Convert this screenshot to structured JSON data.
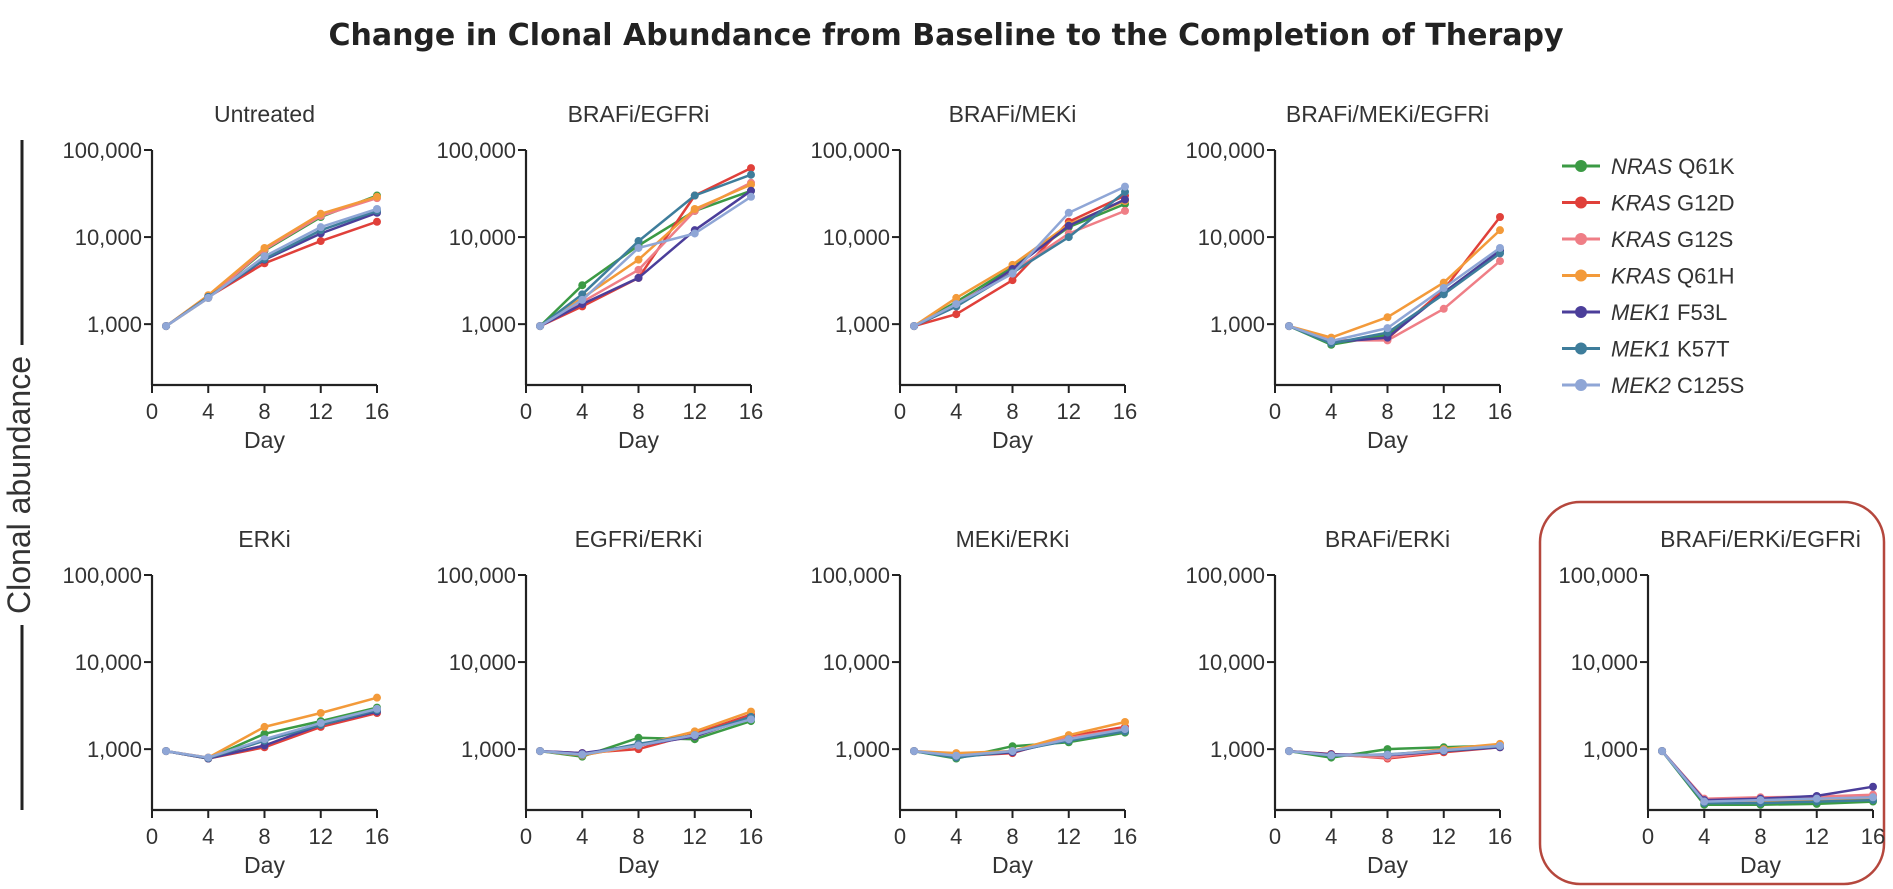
{
  "title": "Change in Clonal Abundance from Baseline to the Completion of Therapy",
  "ylabel": "Clonal abundance",
  "colors": {
    "NRAS Q61K": "#3b9a44",
    "KRAS G12D": "#e0403a",
    "KRAS G12S": "#ef7e86",
    "KRAS Q61H": "#f39a3a",
    "MEK1 F53L": "#4b3e9a",
    "MEK1 K57T": "#3e7d9b",
    "MEK2 C125S": "#8fa6d6"
  },
  "highlight_color": "#b5473d",
  "legend": [
    {
      "gene": "NRAS",
      "mut": " Q61K",
      "key": "NRAS Q61K"
    },
    {
      "gene": "KRAS",
      "mut": " G12D",
      "key": "KRAS G12D"
    },
    {
      "gene": "KRAS",
      "mut": " G12S",
      "key": "KRAS G12S"
    },
    {
      "gene": "KRAS",
      "mut": " Q61H",
      "key": "KRAS Q61H"
    },
    {
      "gene": "MEK1",
      "mut": " F53L",
      "key": "MEK1 F53L"
    },
    {
      "gene": "MEK1",
      "mut": " K57T",
      "key": "MEK1 K57T"
    },
    {
      "gene": "MEK2",
      "mut": " C125S",
      "key": "MEK2 C125S"
    }
  ],
  "chart_data": [
    {
      "type": "line",
      "title": "Untreated",
      "xlabel": "Day",
      "x": [
        1,
        4,
        8,
        12,
        16
      ],
      "xticks": [
        0,
        4,
        8,
        12,
        16
      ],
      "xlim": [
        0,
        16
      ],
      "yscale": "log",
      "ylim": [
        200,
        100000
      ],
      "yticks": [
        1000,
        10000,
        100000
      ],
      "yticklabels": [
        "1,000",
        "10,000",
        "100,000"
      ],
      "series": [
        {
          "name": "NRAS Q61K",
          "values": [
            950,
            2000,
            7000,
            17000,
            30000
          ]
        },
        {
          "name": "KRAS G12D",
          "values": [
            950,
            2050,
            5000,
            9000,
            15000
          ]
        },
        {
          "name": "KRAS G12S",
          "values": [
            950,
            2000,
            7200,
            17500,
            28000
          ]
        },
        {
          "name": "KRAS Q61H",
          "values": [
            950,
            2150,
            7500,
            18500,
            29000
          ]
        },
        {
          "name": "MEK1 F53L",
          "values": [
            950,
            2050,
            5500,
            11000,
            19000
          ]
        },
        {
          "name": "MEK1 K57T",
          "values": [
            950,
            2050,
            5600,
            12000,
            20000
          ]
        },
        {
          "name": "MEK2 C125S",
          "values": [
            950,
            2000,
            6000,
            13000,
            21000
          ]
        }
      ]
    },
    {
      "type": "line",
      "title": "BRAFi/EGFRi",
      "xlabel": "Day",
      "x": [
        1,
        4,
        8,
        12,
        16
      ],
      "xticks": [
        0,
        4,
        8,
        12,
        16
      ],
      "xlim": [
        0,
        16
      ],
      "yscale": "log",
      "ylim": [
        200,
        100000
      ],
      "yticks": [
        1000,
        10000,
        100000
      ],
      "yticklabels": [
        "1,000",
        "10,000",
        "100,000"
      ],
      "series": [
        {
          "name": "NRAS Q61K",
          "values": [
            950,
            2800,
            8000,
            20000,
            34000
          ]
        },
        {
          "name": "KRAS G12D",
          "values": [
            950,
            1600,
            3400,
            30000,
            62000
          ]
        },
        {
          "name": "KRAS G12S",
          "values": [
            950,
            1800,
            4200,
            20000,
            42000
          ]
        },
        {
          "name": "KRAS Q61H",
          "values": [
            950,
            2000,
            5500,
            21000,
            40000
          ]
        },
        {
          "name": "MEK1 F53L",
          "values": [
            950,
            1700,
            3400,
            12000,
            34000
          ]
        },
        {
          "name": "MEK1 K57T",
          "values": [
            950,
            2200,
            9000,
            30000,
            52000
          ]
        },
        {
          "name": "MEK2 C125S",
          "values": [
            950,
            1900,
            7500,
            11000,
            29000
          ]
        }
      ]
    },
    {
      "type": "line",
      "title": "BRAFi/MEKi",
      "xlabel": "Day",
      "x": [
        1,
        4,
        8,
        12,
        16
      ],
      "xticks": [
        0,
        4,
        8,
        12,
        16
      ],
      "xlim": [
        0,
        16
      ],
      "yscale": "log",
      "ylim": [
        200,
        100000
      ],
      "yticks": [
        1000,
        10000,
        100000
      ],
      "yticklabels": [
        "1,000",
        "10,000",
        "100,000"
      ],
      "series": [
        {
          "name": "NRAS Q61K",
          "values": [
            950,
            1800,
            4500,
            13000,
            24000
          ]
        },
        {
          "name": "KRAS G12D",
          "values": [
            950,
            1300,
            3200,
            15000,
            30000
          ]
        },
        {
          "name": "KRAS G12S",
          "values": [
            950,
            1700,
            4000,
            11000,
            20000
          ]
        },
        {
          "name": "KRAS Q61H",
          "values": [
            950,
            2000,
            4800,
            14000,
            26000
          ]
        },
        {
          "name": "MEK1 F53L",
          "values": [
            950,
            1600,
            4300,
            13500,
            27000
          ]
        },
        {
          "name": "MEK1 K57T",
          "values": [
            950,
            1600,
            3900,
            10000,
            33000
          ]
        },
        {
          "name": "MEK2 C125S",
          "values": [
            950,
            1700,
            3800,
            19000,
            38000
          ]
        }
      ]
    },
    {
      "type": "line",
      "title": "BRAFi/MEKi/EGFRi",
      "xlabel": "Day",
      "x": [
        1,
        4,
        8,
        12,
        16
      ],
      "xticks": [
        0,
        4,
        8,
        12,
        16
      ],
      "xlim": [
        0,
        16
      ],
      "yscale": "log",
      "ylim": [
        200,
        100000
      ],
      "yticks": [
        1000,
        10000,
        100000
      ],
      "yticklabels": [
        "1,000",
        "10,000",
        "100,000"
      ],
      "series": [
        {
          "name": "NRAS Q61K",
          "values": [
            950,
            580,
            750,
            2300,
            7000
          ]
        },
        {
          "name": "KRAS G12D",
          "values": [
            950,
            640,
            680,
            2500,
            17000
          ]
        },
        {
          "name": "KRAS G12S",
          "values": [
            950,
            650,
            650,
            1500,
            5300
          ]
        },
        {
          "name": "KRAS Q61H",
          "values": [
            950,
            700,
            1200,
            3000,
            12000
          ]
        },
        {
          "name": "MEK1 F53L",
          "values": [
            950,
            620,
            700,
            2300,
            7000
          ]
        },
        {
          "name": "MEK1 K57T",
          "values": [
            950,
            600,
            800,
            2200,
            6500
          ]
        },
        {
          "name": "MEK2 C125S",
          "values": [
            950,
            640,
            900,
            2600,
            7500
          ]
        }
      ]
    },
    {
      "type": "line",
      "title": "ERKi",
      "xlabel": "Day",
      "x": [
        1,
        4,
        8,
        12,
        16
      ],
      "xticks": [
        0,
        4,
        8,
        12,
        16
      ],
      "xlim": [
        0,
        16
      ],
      "yscale": "log",
      "ylim": [
        200,
        100000
      ],
      "yticks": [
        1000,
        10000,
        100000
      ],
      "yticklabels": [
        "1,000",
        "10,000",
        "100,000"
      ],
      "series": [
        {
          "name": "NRAS Q61K",
          "values": [
            950,
            780,
            1500,
            2100,
            3000
          ]
        },
        {
          "name": "KRAS G12D",
          "values": [
            950,
            780,
            1050,
            1800,
            2600
          ]
        },
        {
          "name": "KRAS G12S",
          "values": [
            950,
            800,
            1100,
            1900,
            2700
          ]
        },
        {
          "name": "KRAS Q61H",
          "values": [
            950,
            800,
            1800,
            2600,
            3900
          ]
        },
        {
          "name": "MEK1 F53L",
          "values": [
            950,
            780,
            1100,
            1900,
            2700
          ]
        },
        {
          "name": "MEK1 K57T",
          "values": [
            950,
            790,
            1250,
            1900,
            2800
          ]
        },
        {
          "name": "MEK2 C125S",
          "values": [
            950,
            800,
            1300,
            2000,
            2900
          ]
        }
      ]
    },
    {
      "type": "line",
      "title": "EGFRi/ERKi",
      "xlabel": "Day",
      "x": [
        1,
        4,
        8,
        12,
        16
      ],
      "xticks": [
        0,
        4,
        8,
        12,
        16
      ],
      "xlim": [
        0,
        16
      ],
      "yscale": "log",
      "ylim": [
        200,
        100000
      ],
      "yticks": [
        1000,
        10000,
        100000
      ],
      "yticklabels": [
        "1,000",
        "10,000",
        "100,000"
      ],
      "series": [
        {
          "name": "NRAS Q61K",
          "values": [
            950,
            820,
            1350,
            1300,
            2100
          ]
        },
        {
          "name": "KRAS G12D",
          "values": [
            950,
            900,
            1000,
            1500,
            2500
          ]
        },
        {
          "name": "KRAS G12S",
          "values": [
            950,
            850,
            1100,
            1400,
            2300
          ]
        },
        {
          "name": "KRAS Q61H",
          "values": [
            950,
            850,
            1100,
            1600,
            2700
          ]
        },
        {
          "name": "MEK1 F53L",
          "values": [
            950,
            900,
            1100,
            1400,
            2300
          ]
        },
        {
          "name": "MEK1 K57T",
          "values": [
            950,
            860,
            1150,
            1450,
            2350
          ]
        },
        {
          "name": "MEK2 C125S",
          "values": [
            950,
            870,
            1100,
            1450,
            2200
          ]
        }
      ]
    },
    {
      "type": "line",
      "title": "MEKi/ERKi",
      "xlabel": "Day",
      "x": [
        1,
        4,
        8,
        12,
        16
      ],
      "xticks": [
        0,
        4,
        8,
        12,
        16
      ],
      "xlim": [
        0,
        16
      ],
      "yscale": "log",
      "ylim": [
        200,
        100000
      ],
      "yticks": [
        1000,
        10000,
        100000
      ],
      "yticklabels": [
        "1,000",
        "10,000",
        "100,000"
      ],
      "series": [
        {
          "name": "NRAS Q61K",
          "values": [
            950,
            780,
            1080,
            1200,
            1550
          ]
        },
        {
          "name": "KRAS G12D",
          "values": [
            950,
            830,
            900,
            1400,
            1800
          ]
        },
        {
          "name": "KRAS G12S",
          "values": [
            950,
            850,
            950,
            1350,
            1700
          ]
        },
        {
          "name": "KRAS Q61H",
          "values": [
            950,
            900,
            950,
            1450,
            2050
          ]
        },
        {
          "name": "MEK1 F53L",
          "values": [
            950,
            820,
            920,
            1300,
            1650
          ]
        },
        {
          "name": "MEK1 K57T",
          "values": [
            950,
            800,
            950,
            1250,
            1600
          ]
        },
        {
          "name": "MEK2 C125S",
          "values": [
            950,
            840,
            950,
            1300,
            1700
          ]
        }
      ]
    },
    {
      "type": "line",
      "title": "BRAFi/ERKi",
      "xlabel": "Day",
      "x": [
        1,
        4,
        8,
        12,
        16
      ],
      "xticks": [
        0,
        4,
        8,
        12,
        16
      ],
      "xlim": [
        0,
        16
      ],
      "yscale": "log",
      "ylim": [
        200,
        100000
      ],
      "yticks": [
        1000,
        10000,
        100000
      ],
      "yticklabels": [
        "1,000",
        "10,000",
        "100,000"
      ],
      "series": [
        {
          "name": "NRAS Q61K",
          "values": [
            950,
            800,
            1000,
            1050,
            1100
          ]
        },
        {
          "name": "KRAS G12D",
          "values": [
            950,
            880,
            780,
            920,
            1050
          ]
        },
        {
          "name": "KRAS G12S",
          "values": [
            950,
            860,
            800,
            950,
            1100
          ]
        },
        {
          "name": "KRAS Q61H",
          "values": [
            950,
            850,
            850,
            1000,
            1150
          ]
        },
        {
          "name": "MEK1 F53L",
          "values": [
            950,
            870,
            850,
            950,
            1050
          ]
        },
        {
          "name": "MEK1 K57T",
          "values": [
            950,
            840,
            870,
            960,
            1080
          ]
        },
        {
          "name": "MEK2 C125S",
          "values": [
            950,
            850,
            860,
            970,
            1090
          ]
        }
      ]
    },
    {
      "type": "line",
      "title": "BRAFi/ERKi/EGFRi",
      "xlabel": "Day",
      "highlighted": true,
      "x": [
        1,
        4,
        8,
        12,
        16
      ],
      "xticks": [
        0,
        4,
        8,
        12,
        16
      ],
      "xlim": [
        0,
        16
      ],
      "yscale": "log",
      "ylim": [
        200,
        100000
      ],
      "yticks": [
        1000,
        10000,
        100000
      ],
      "yticklabels": [
        "1,000",
        "10,000",
        "100,000"
      ],
      "series": [
        {
          "name": "NRAS Q61K",
          "values": [
            950,
            230,
            230,
            235,
            250
          ]
        },
        {
          "name": "KRAS G12D",
          "values": [
            950,
            260,
            270,
            280,
            290
          ]
        },
        {
          "name": "KRAS G12S",
          "values": [
            950,
            270,
            280,
            285,
            300
          ]
        },
        {
          "name": "KRAS Q61H",
          "values": [
            950,
            250,
            250,
            260,
            270
          ]
        },
        {
          "name": "MEK1 F53L",
          "values": [
            950,
            260,
            270,
            290,
            370
          ]
        },
        {
          "name": "MEK1 K57T",
          "values": [
            950,
            240,
            240,
            250,
            260
          ]
        },
        {
          "name": "MEK2 C125S",
          "values": [
            950,
            250,
            260,
            270,
            280
          ]
        }
      ]
    }
  ]
}
